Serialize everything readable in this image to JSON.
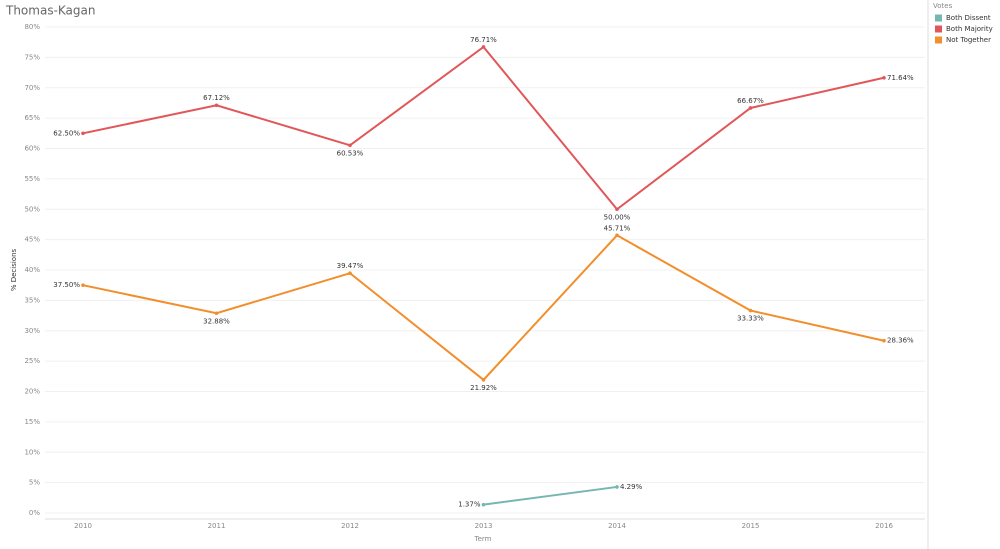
{
  "chart_data": {
    "type": "line",
    "title": "Thomas-Kagan",
    "x_label": "Term",
    "y_label": "% Decisions",
    "legend_title": "Votes",
    "categories": [
      "2010",
      "2011",
      "2012",
      "2013",
      "2014",
      "2015",
      "2016"
    ],
    "series": [
      {
        "name": "Both Dissent",
        "color": "#76b7b2",
        "values": [
          null,
          null,
          null,
          1.37,
          4.29,
          null,
          null
        ],
        "value_labels": [
          null,
          null,
          null,
          "1.37%",
          "4.29%",
          null,
          null
        ]
      },
      {
        "name": "Both Majority",
        "color": "#e15759",
        "values": [
          62.5,
          67.12,
          60.53,
          76.71,
          50.0,
          66.67,
          71.64
        ],
        "value_labels": [
          "62.50%",
          "67.12%",
          "60.53%",
          "76.71%",
          "50.00%",
          "66.67%",
          "71.64%"
        ]
      },
      {
        "name": "Not Together",
        "color": "#f28e2b",
        "values": [
          37.5,
          32.88,
          39.47,
          21.92,
          45.71,
          33.33,
          28.36
        ],
        "value_labels": [
          "37.50%",
          "32.88%",
          "39.47%",
          "21.92%",
          "45.71%",
          "33.33%",
          "28.36%"
        ]
      }
    ],
    "ylim": [
      0,
      80
    ],
    "yticks": [
      {
        "value": 0,
        "label": "0%"
      },
      {
        "value": 5,
        "label": "5%"
      },
      {
        "value": 10,
        "label": "10%"
      },
      {
        "value": 15,
        "label": "15%"
      },
      {
        "value": 20,
        "label": "20%"
      },
      {
        "value": 25,
        "label": "25%"
      },
      {
        "value": 30,
        "label": "30%"
      },
      {
        "value": 35,
        "label": "35%"
      },
      {
        "value": 40,
        "label": "40%"
      },
      {
        "value": 45,
        "label": "45%"
      },
      {
        "value": 50,
        "label": "50%"
      },
      {
        "value": 55,
        "label": "55%"
      },
      {
        "value": 60,
        "label": "60%"
      },
      {
        "value": 65,
        "label": "65%"
      },
      {
        "value": 70,
        "label": "70%"
      },
      {
        "value": 75,
        "label": "75%"
      },
      {
        "value": 80,
        "label": "80%"
      }
    ],
    "grid": true
  }
}
